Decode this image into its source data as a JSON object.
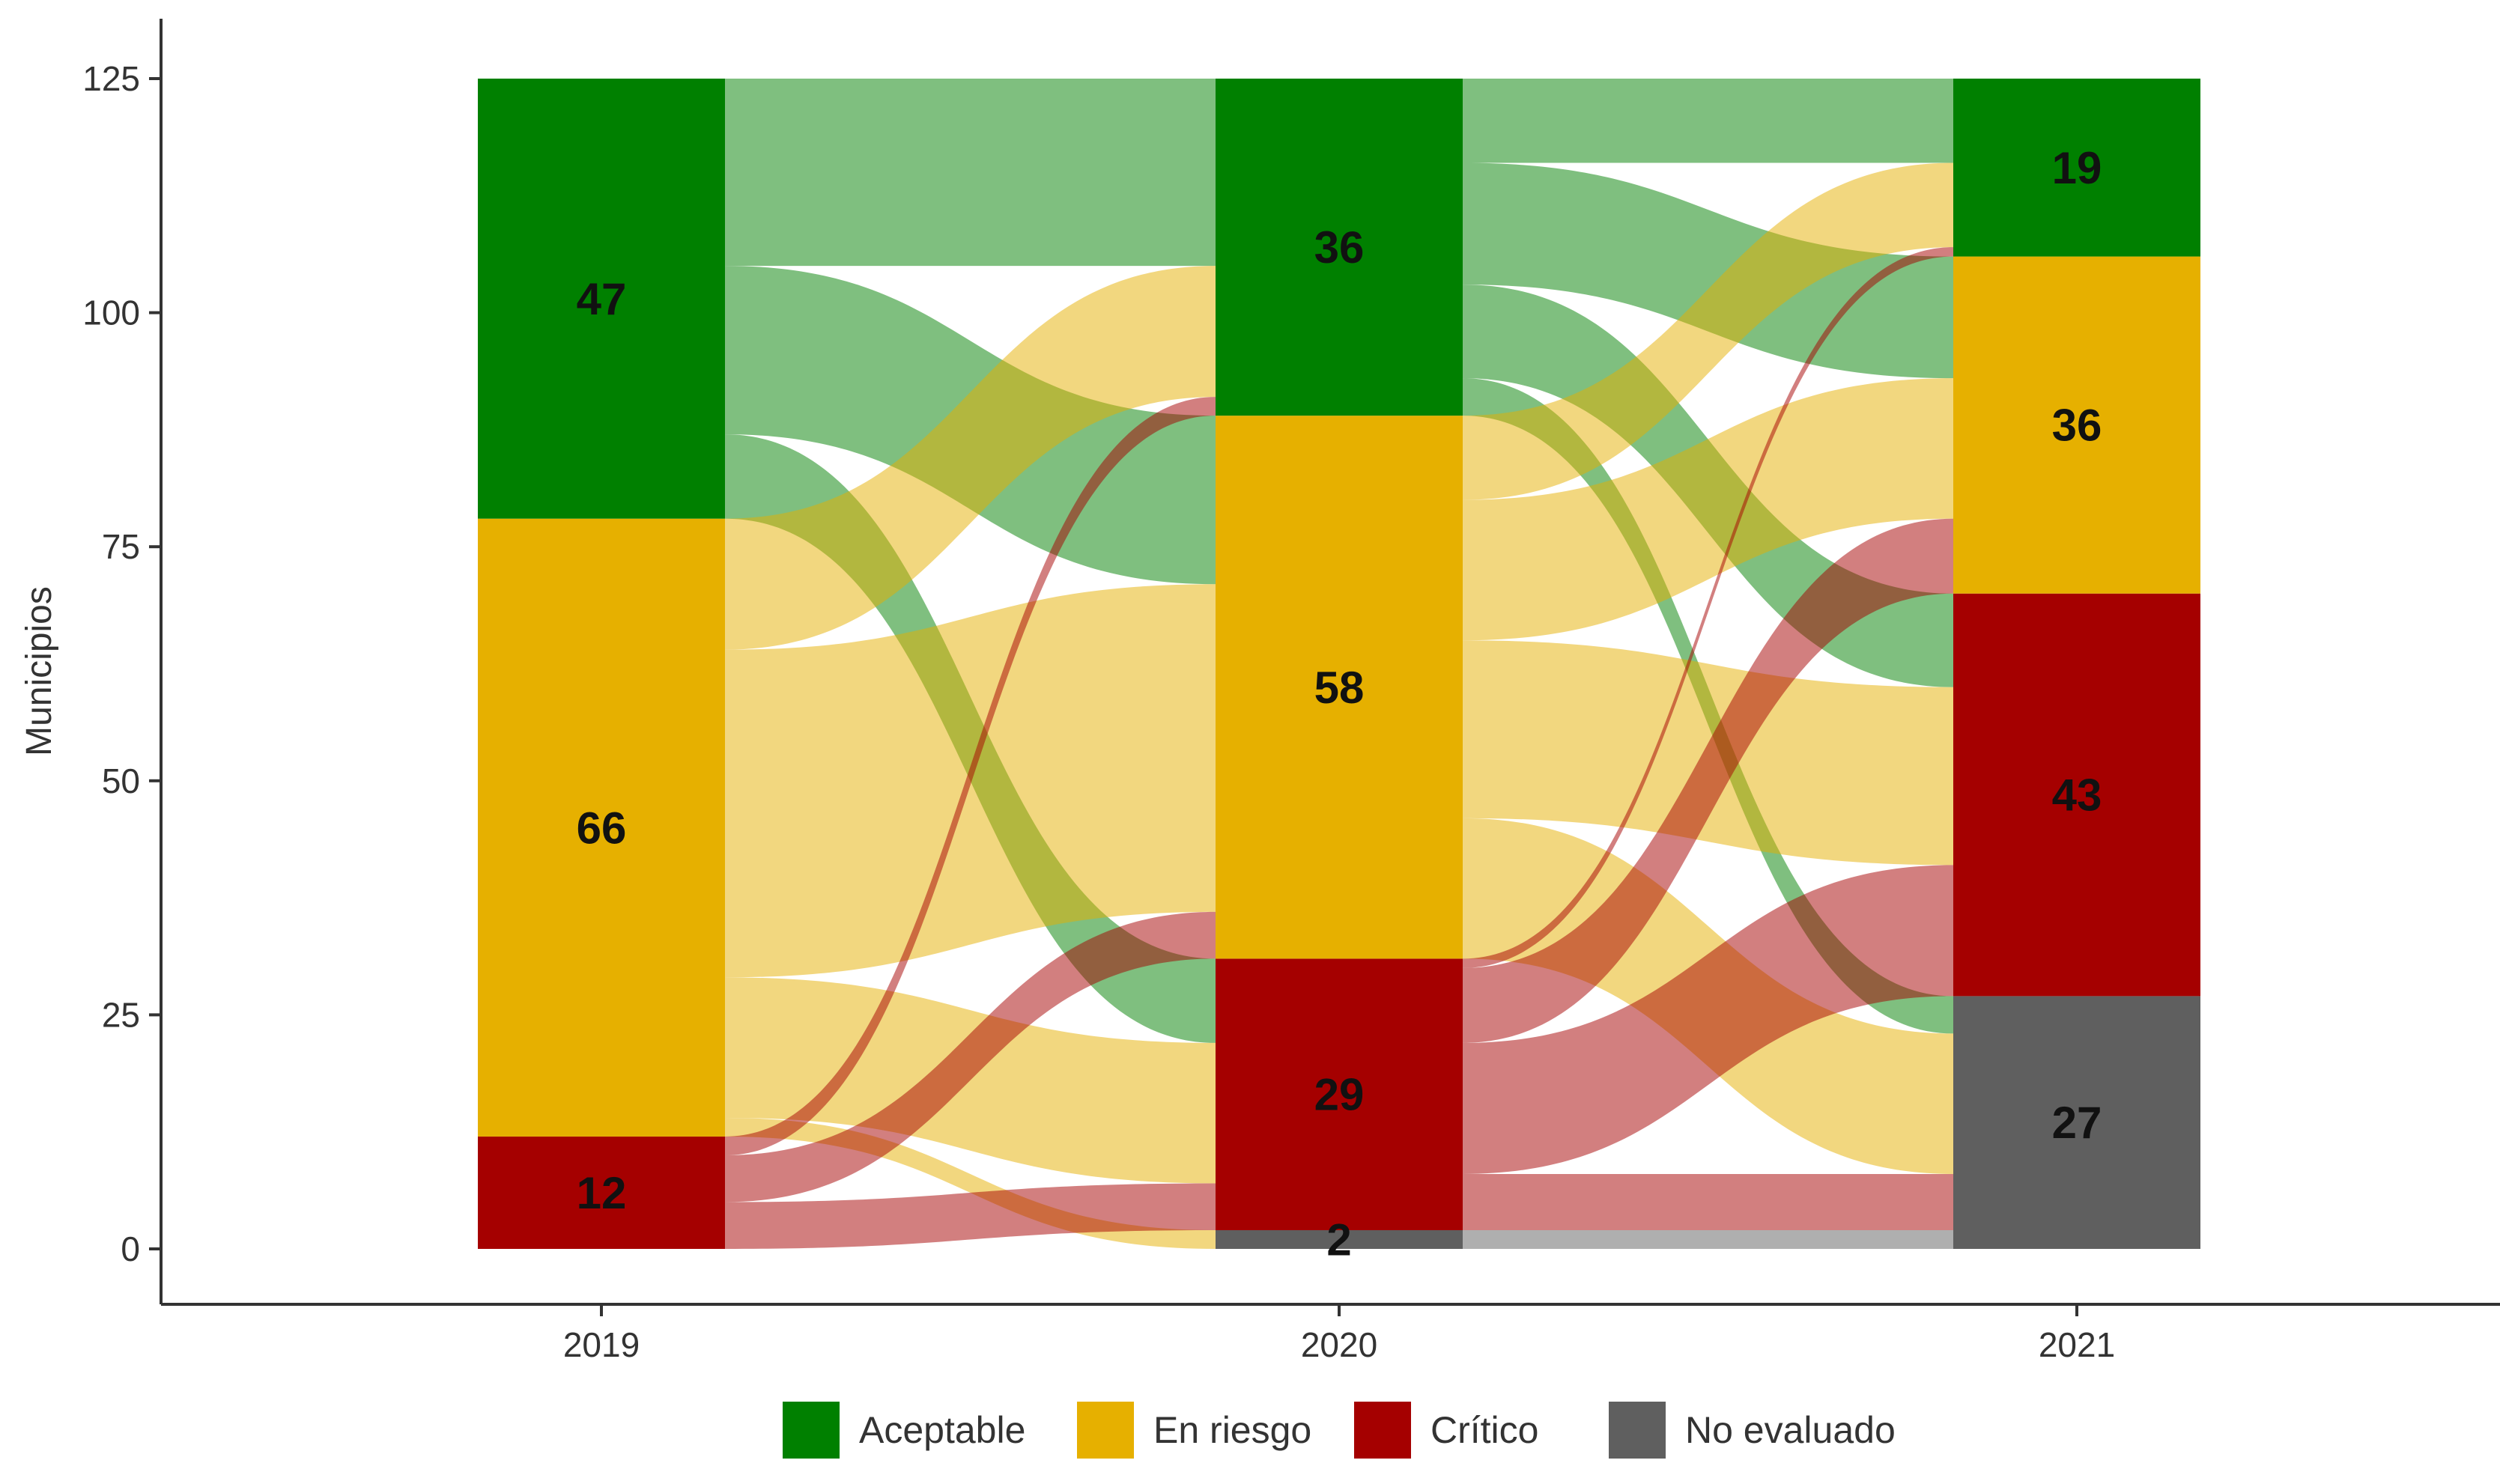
{
  "chart_data": {
    "type": "alluvial",
    "ylabel": "Municipios",
    "xlabel": "",
    "ylim": [
      -5,
      125
    ],
    "yticks": [
      0,
      25,
      50,
      75,
      100,
      125
    ],
    "years": [
      "2019",
      "2020",
      "2021"
    ],
    "categories": [
      "Aceptable",
      "En riesgo",
      "Crítico",
      "No evaluado"
    ],
    "colors": {
      "Aceptable": "#008000",
      "En riesgo": "#E6B000",
      "Crítico": "#A50000",
      "No evaluado": "#5F5F5F"
    },
    "stack_order": [
      "No evaluado",
      "Crítico",
      "En riesgo",
      "Aceptable"
    ],
    "counts": [
      {
        "Aceptable": 47,
        "En riesgo": 66,
        "Crítico": 12,
        "No evaluado": 0
      },
      {
        "Aceptable": 36,
        "En riesgo": 58,
        "Crítico": 29,
        "No evaluado": 2
      },
      {
        "Aceptable": 19,
        "En riesgo": 36,
        "Crítico": 43,
        "No evaluado": 27
      }
    ],
    "flows": [
      [
        [
          "Aceptable",
          "Aceptable",
          20
        ],
        [
          "Aceptable",
          "En riesgo",
          18
        ],
        [
          "Aceptable",
          "Crítico",
          9
        ],
        [
          "En riesgo",
          "Aceptable",
          14
        ],
        [
          "En riesgo",
          "En riesgo",
          35
        ],
        [
          "En riesgo",
          "Crítico",
          15
        ],
        [
          "En riesgo",
          "No evaluado",
          2
        ],
        [
          "Crítico",
          "Aceptable",
          2
        ],
        [
          "Crítico",
          "En riesgo",
          5
        ],
        [
          "Crítico",
          "Crítico",
          5
        ]
      ],
      [
        [
          "Aceptable",
          "Aceptable",
          9
        ],
        [
          "Aceptable",
          "En riesgo",
          13
        ],
        [
          "Aceptable",
          "Crítico",
          10
        ],
        [
          "Aceptable",
          "No evaluado",
          4
        ],
        [
          "En riesgo",
          "Aceptable",
          9
        ],
        [
          "En riesgo",
          "En riesgo",
          15
        ],
        [
          "En riesgo",
          "Crítico",
          19
        ],
        [
          "En riesgo",
          "No evaluado",
          15
        ],
        [
          "Crítico",
          "Aceptable",
          1
        ],
        [
          "Crítico",
          "En riesgo",
          8
        ],
        [
          "Crítico",
          "Crítico",
          14
        ],
        [
          "Crítico",
          "No evaluado",
          6
        ],
        [
          "No evaluado",
          "No evaluado",
          2
        ]
      ]
    ],
    "legend": {
      "position": "bottom",
      "entries": [
        "Aceptable",
        "En riesgo",
        "Crítico",
        "No evaluado"
      ]
    }
  }
}
